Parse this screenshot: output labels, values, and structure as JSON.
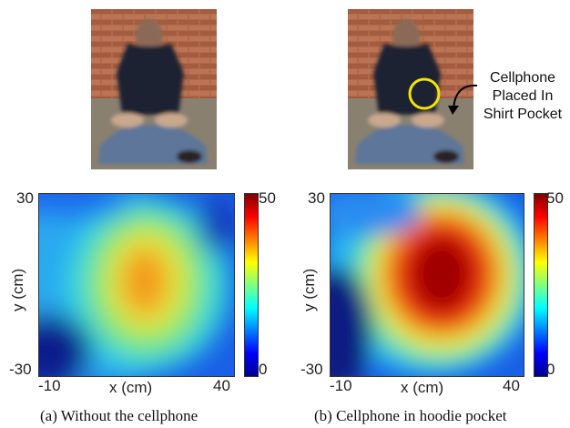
{
  "panels": [
    {
      "caption": "(a)  Without the cellphone",
      "y_axis_label": "y (cm)",
      "x_axis_label": "x (cm)",
      "y_ticks": [
        "30",
        "-30"
      ],
      "x_ticks": [
        "-10",
        "40"
      ],
      "colorbar_ticks": [
        "50",
        "0"
      ]
    },
    {
      "caption": "(b)  Cellphone in hoodie pocket",
      "y_axis_label": "y (cm)",
      "x_axis_label": "x (cm)",
      "y_ticks": [
        "30",
        "-30"
      ],
      "x_ticks": [
        "-10",
        "40"
      ],
      "colorbar_ticks": [
        "50",
        "0"
      ],
      "callout": [
        "Cellphone",
        "Placed In",
        "Shirt Pocket"
      ]
    }
  ],
  "chart_data": [
    {
      "type": "heatmap",
      "title": "",
      "xlabel": "x (cm)",
      "ylabel": "y (cm)",
      "xlim": [
        -10,
        40
      ],
      "ylim": [
        -30,
        30
      ],
      "color_range": [
        0,
        50
      ],
      "colormap": "jet",
      "peak": {
        "x": 18,
        "y": 2,
        "value": 35
      }
    },
    {
      "type": "heatmap",
      "title": "",
      "xlabel": "x (cm)",
      "ylabel": "y (cm)",
      "xlim": [
        -10,
        40
      ],
      "ylim": [
        -30,
        30
      ],
      "color_range": [
        0,
        50
      ],
      "colormap": "jet",
      "peak": {
        "x": 17,
        "y": 5,
        "value": 50
      }
    }
  ],
  "colors": {
    "photo_wall": "#b0694a",
    "photo_floor": "#8a8070",
    "shirt": "#1e2330",
    "jeans": "#5d7699",
    "marker_circle": "#f2e600"
  }
}
